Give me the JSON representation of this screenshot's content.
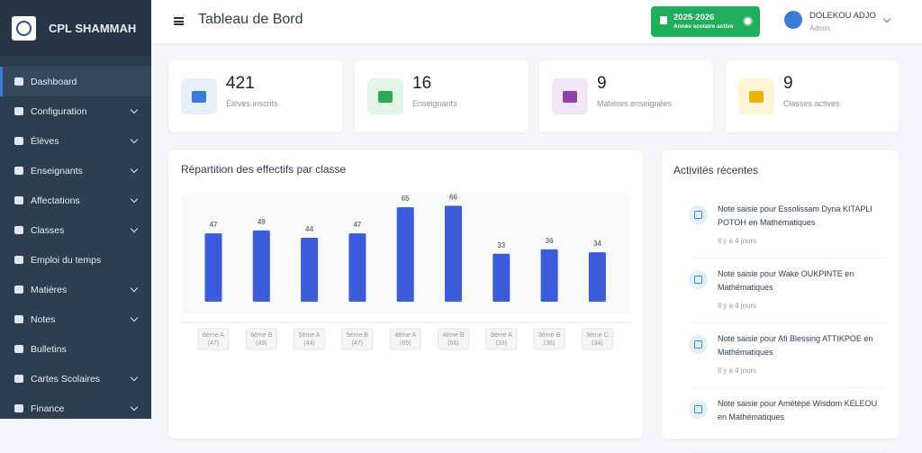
{
  "sidebar": {
    "brand": "CPL SHAMMAH",
    "menu": [
      {
        "label": "Dashboard",
        "sub": false
      },
      {
        "label": "Configuration",
        "sub": true
      },
      {
        "label": "Élèves",
        "sub": true
      },
      {
        "label": "Enseignants",
        "sub": true
      },
      {
        "label": "Affectations",
        "sub": true
      },
      {
        "label": "Classes",
        "sub": true
      },
      {
        "label": "Emploi du temps",
        "sub": false
      },
      {
        "label": "Matières",
        "sub": true
      },
      {
        "label": "Notes",
        "sub": true
      },
      {
        "label": "Bulletins",
        "sub": false
      },
      {
        "label": "Cartes Scolaires",
        "sub": true
      },
      {
        "label": "Finance",
        "sub": true
      }
    ]
  },
  "header": {
    "title": "Tableau de Bord",
    "year": "2025-2026",
    "year_caption": "Année scolaire active",
    "user": "DOLEKOU ADJO",
    "role": "Admin"
  },
  "stats": [
    {
      "value": 421,
      "label": "Élèves inscrits",
      "color": "#3a7bd5",
      "bg": "#e6effa"
    },
    {
      "value": 16,
      "label": "Enseignants",
      "color": "#2eaa55",
      "bg": "#e2f6e8"
    },
    {
      "value": 9,
      "label": "Matières enseignées",
      "color": "#8e44ad",
      "bg": "#f2e7f9"
    },
    {
      "value": 9,
      "label": "Classes actives",
      "color": "#eab308",
      "bg": "#fff5d6"
    }
  ],
  "chart_data": {
    "type": "bar",
    "title": "Répartition des effectifs par classe",
    "categories": [
      "6ème A",
      "6ème B",
      "5ème A",
      "5ème B",
      "4ème A",
      "4ème B",
      "3ème A",
      "3ème B",
      "3ème C"
    ],
    "values": [
      47,
      49,
      44,
      47,
      65,
      66,
      33,
      36,
      34
    ],
    "category_counts": [
      "(47)",
      "(49)",
      "(44)",
      "(47)",
      "(65)",
      "(66)",
      "(33)",
      "(36)",
      "(34)"
    ],
    "color": "#3b5bdb",
    "ylim": [
      0,
      70
    ]
  },
  "activity": {
    "title": "Activités récentes",
    "items": [
      {
        "text": "Note saisie pour Essolissam Dyna KITAPLI POTOH en Mathématiques",
        "time": "Il y a 4 jours"
      },
      {
        "text": "Note saisie pour Wake OUKPINTE en Mathématiques",
        "time": "Il y a 4 jours"
      },
      {
        "text": "Note saisie pour Afi Blessing ATTIKPOE en Mathématiques",
        "time": "Il y a 4 jours"
      },
      {
        "text": "Note saisie pour Amétépé Wisdom KELEOU en Mathématiques",
        "time": null
      }
    ]
  }
}
